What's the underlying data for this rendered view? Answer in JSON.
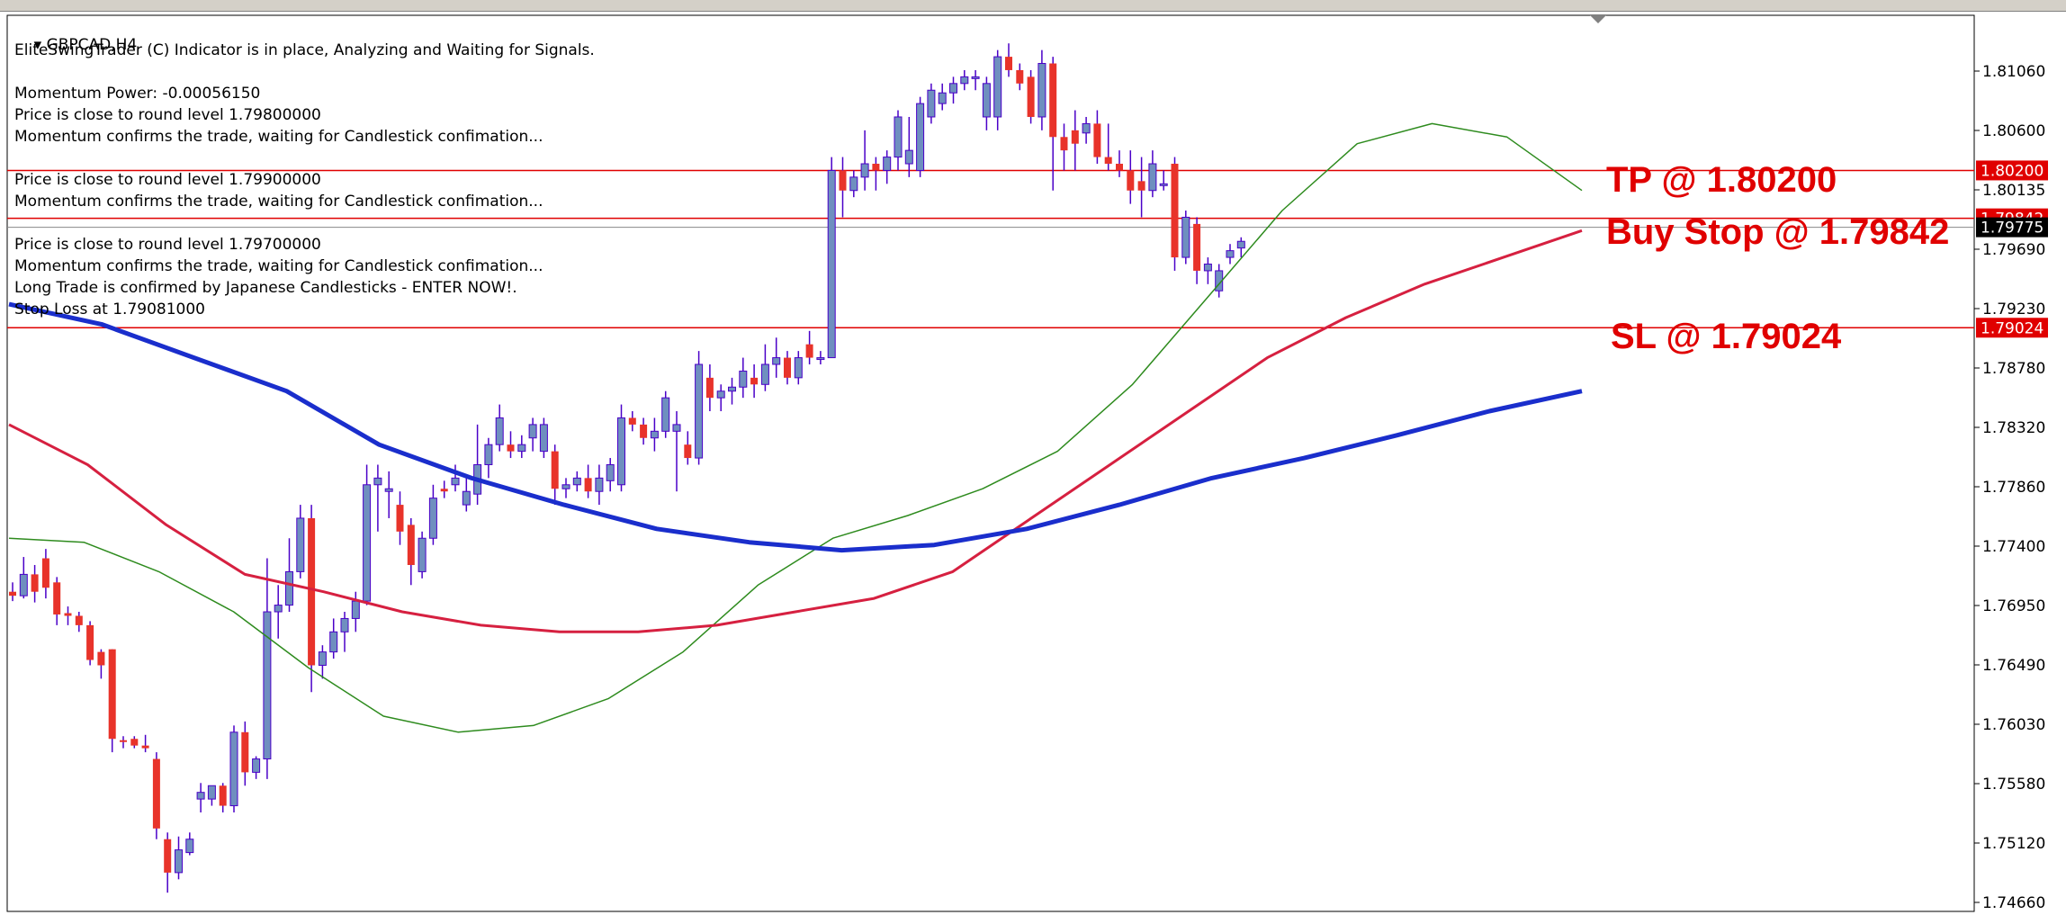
{
  "header": {
    "symbol_title": "GBPCAD,H4"
  },
  "info_lines": [
    "EliteSwingTrader (C) Indicator is in place, Analyzing and Waiting for Signals.",
    "",
    "Momentum Power: -0.00056150",
    "Price is close to round level 1.79800000",
    "Momentum confirms the trade, waiting for Candlestick confimation...",
    "",
    "Price is close to round level 1.79900000",
    "Momentum confirms the trade, waiting for Candlestick confimation...",
    "",
    "Price is close to round level 1.79700000",
    "Momentum confirms the trade, waiting for Candlestick confimation...",
    "Long Trade is confirmed by Japanese Candlesticks - ENTER NOW!.",
    "Stop Loss at 1.79081000"
  ],
  "annotations": {
    "tp": "TP @ 1.80200",
    "buy_stop": "Buy Stop @ 1.79842",
    "sl": "SL @ 1.79024"
  },
  "colors": {
    "bull": "#6f8fbf",
    "bear": "#e8332a",
    "wick": "#4a00c8",
    "level": "#e00000",
    "ma_fast": "#2e8b1e",
    "ma_mid": "#d62040",
    "ma_slow": "#1a2ecc",
    "annotation": "#e00000"
  },
  "chart_data": {
    "type": "candlestick",
    "title": "GBPCAD,H4",
    "ylim": [
      1.7466,
      1.8136
    ],
    "y_ticks": [
      "1.81060",
      "1.80600",
      "1.80135",
      "1.79690",
      "1.79230",
      "1.78780",
      "1.78320",
      "1.77860",
      "1.77400",
      "1.76950",
      "1.76490",
      "1.76030",
      "1.75580",
      "1.75120",
      "1.74660"
    ],
    "levels": [
      {
        "name": "TP",
        "value": 1.802,
        "label": "1.80200"
      },
      {
        "name": "Buy Stop",
        "value": 1.79842,
        "label": "1.79842"
      },
      {
        "name": "SL",
        "value": 1.79024,
        "label": "1.79024"
      }
    ],
    "current_price": {
      "value": 1.79775,
      "label": "1.79775"
    },
    "candles": [
      [
        1.7705,
        1.7712,
        1.7698,
        1.7702
      ],
      [
        1.7702,
        1.7731,
        1.77,
        1.7718
      ],
      [
        1.7718,
        1.7725,
        1.7697,
        1.7705
      ],
      [
        1.773,
        1.7737,
        1.77,
        1.7708
      ],
      [
        1.7712,
        1.7716,
        1.768,
        1.7688
      ],
      [
        1.7689,
        1.7694,
        1.768,
        1.7687
      ],
      [
        1.7687,
        1.769,
        1.7675,
        1.768
      ],
      [
        1.768,
        1.7683,
        1.765,
        1.7654
      ],
      [
        1.766,
        1.7662,
        1.764,
        1.765
      ],
      [
        1.7662,
        1.7662,
        1.7585,
        1.7595
      ],
      [
        1.7594,
        1.7597,
        1.7588,
        1.7593
      ],
      [
        1.7595,
        1.7597,
        1.7588,
        1.759
      ],
      [
        1.759,
        1.7598,
        1.7585,
        1.7588
      ],
      [
        1.758,
        1.7585,
        1.752,
        1.7528
      ],
      [
        1.752,
        1.7525,
        1.748,
        1.7495
      ],
      [
        1.7495,
        1.7522,
        1.749,
        1.7512
      ],
      [
        1.751,
        1.7525,
        1.7508,
        1.752
      ],
      [
        1.755,
        1.7562,
        1.754,
        1.7555
      ],
      [
        1.755,
        1.7558,
        1.7545,
        1.756
      ],
      [
        1.756,
        1.7562,
        1.754,
        1.7545
      ],
      [
        1.7545,
        1.7605,
        1.754,
        1.76
      ],
      [
        1.76,
        1.7608,
        1.756,
        1.757
      ],
      [
        1.757,
        1.7582,
        1.7565,
        1.758
      ],
      [
        1.758,
        1.773,
        1.7565,
        1.769
      ],
      [
        1.769,
        1.771,
        1.767,
        1.7695
      ],
      [
        1.7695,
        1.7745,
        1.769,
        1.772
      ],
      [
        1.772,
        1.777,
        1.7715,
        1.776
      ],
      [
        1.776,
        1.777,
        1.763,
        1.765
      ],
      [
        1.765,
        1.7665,
        1.764,
        1.766
      ],
      [
        1.766,
        1.7685,
        1.7655,
        1.7675
      ],
      [
        1.7675,
        1.769,
        1.766,
        1.7685
      ],
      [
        1.7685,
        1.7705,
        1.7675,
        1.7698
      ],
      [
        1.7698,
        1.78,
        1.7695,
        1.7785
      ],
      [
        1.7785,
        1.78,
        1.775,
        1.779
      ],
      [
        1.778,
        1.7795,
        1.776,
        1.7782
      ],
      [
        1.777,
        1.778,
        1.774,
        1.775
      ],
      [
        1.7755,
        1.776,
        1.771,
        1.7725
      ],
      [
        1.772,
        1.775,
        1.7715,
        1.7745
      ],
      [
        1.7745,
        1.7785,
        1.774,
        1.7775
      ],
      [
        1.7782,
        1.7788,
        1.7775,
        1.778
      ],
      [
        1.7785,
        1.78,
        1.778,
        1.779
      ],
      [
        1.777,
        1.779,
        1.7765,
        1.778
      ],
      [
        1.7778,
        1.783,
        1.777,
        1.78
      ],
      [
        1.78,
        1.782,
        1.779,
        1.7815
      ],
      [
        1.7815,
        1.7845,
        1.781,
        1.7835
      ],
      [
        1.7815,
        1.7825,
        1.7805,
        1.781
      ],
      [
        1.781,
        1.7822,
        1.7805,
        1.7815
      ],
      [
        1.782,
        1.7835,
        1.781,
        1.783
      ],
      [
        1.781,
        1.7835,
        1.7805,
        1.783
      ],
      [
        1.781,
        1.7815,
        1.777,
        1.7782
      ],
      [
        1.7782,
        1.779,
        1.7775,
        1.7785
      ],
      [
        1.7785,
        1.7795,
        1.778,
        1.779
      ],
      [
        1.779,
        1.78,
        1.7775,
        1.778
      ],
      [
        1.778,
        1.78,
        1.777,
        1.779
      ],
      [
        1.7788,
        1.7805,
        1.778,
        1.78
      ],
      [
        1.7785,
        1.7845,
        1.778,
        1.7835
      ],
      [
        1.7835,
        1.784,
        1.7825,
        1.783
      ],
      [
        1.783,
        1.7835,
        1.7815,
        1.782
      ],
      [
        1.782,
        1.7835,
        1.781,
        1.7825
      ],
      [
        1.7825,
        1.7855,
        1.782,
        1.785
      ],
      [
        1.7825,
        1.784,
        1.778,
        1.783
      ],
      [
        1.7815,
        1.7825,
        1.78,
        1.7805
      ],
      [
        1.7805,
        1.7885,
        1.78,
        1.7875
      ],
      [
        1.7865,
        1.7875,
        1.784,
        1.785
      ],
      [
        1.785,
        1.786,
        1.784,
        1.7855
      ],
      [
        1.7855,
        1.7865,
        1.7845,
        1.7858
      ],
      [
        1.7858,
        1.788,
        1.785,
        1.787
      ],
      [
        1.7865,
        1.7875,
        1.785,
        1.786
      ],
      [
        1.786,
        1.789,
        1.7855,
        1.7875
      ],
      [
        1.7875,
        1.7895,
        1.7865,
        1.788
      ],
      [
        1.788,
        1.7885,
        1.786,
        1.7865
      ],
      [
        1.7865,
        1.7885,
        1.786,
        1.788
      ],
      [
        1.789,
        1.79,
        1.7875,
        1.788
      ],
      [
        1.788,
        1.7885,
        1.7875,
        1.788
      ],
      [
        1.788,
        1.803,
        1.788,
        1.802
      ],
      [
        1.802,
        1.803,
        1.7985,
        1.8005
      ],
      [
        1.8005,
        1.802,
        1.8,
        1.8015
      ],
      [
        1.8015,
        1.805,
        1.8005,
        1.8025
      ],
      [
        1.8025,
        1.803,
        1.8005,
        1.802
      ],
      [
        1.802,
        1.8035,
        1.801,
        1.803
      ],
      [
        1.803,
        1.8065,
        1.802,
        1.806
      ],
      [
        1.8025,
        1.806,
        1.8015,
        1.8035
      ],
      [
        1.802,
        1.8075,
        1.8015,
        1.807
      ],
      [
        1.806,
        1.8085,
        1.8055,
        1.808
      ],
      [
        1.807,
        1.8085,
        1.8065,
        1.8078
      ],
      [
        1.8078,
        1.809,
        1.807,
        1.8085
      ],
      [
        1.8085,
        1.8095,
        1.808,
        1.809
      ],
      [
        1.809,
        1.8095,
        1.808,
        1.809
      ],
      [
        1.806,
        1.809,
        1.805,
        1.8085
      ],
      [
        1.806,
        1.811,
        1.805,
        1.8105
      ],
      [
        1.8105,
        1.8115,
        1.809,
        1.8095
      ],
      [
        1.8095,
        1.81,
        1.808,
        1.8085
      ],
      [
        1.809,
        1.8095,
        1.8055,
        1.806
      ],
      [
        1.806,
        1.811,
        1.805,
        1.81
      ],
      [
        1.81,
        1.8105,
        1.8005,
        1.8045
      ],
      [
        1.8045,
        1.8055,
        1.802,
        1.8035
      ],
      [
        1.805,
        1.8065,
        1.802,
        1.804
      ],
      [
        1.8048,
        1.806,
        1.804,
        1.8055
      ],
      [
        1.8055,
        1.8065,
        1.8025,
        1.803
      ],
      [
        1.803,
        1.8055,
        1.802,
        1.8025
      ],
      [
        1.8025,
        1.8035,
        1.8015,
        1.802
      ],
      [
        1.802,
        1.8035,
        1.7995,
        1.8005
      ],
      [
        1.8012,
        1.803,
        1.7985,
        1.8005
      ],
      [
        1.8005,
        1.8035,
        1.8,
        1.8025
      ],
      [
        1.801,
        1.802,
        1.8005,
        1.801
      ],
      [
        1.8025,
        1.803,
        1.7945,
        1.7955
      ],
      [
        1.7955,
        1.799,
        1.795,
        1.7985
      ],
      [
        1.798,
        1.7985,
        1.7935,
        1.7945
      ],
      [
        1.7945,
        1.7955,
        1.7935,
        1.795
      ],
      [
        1.793,
        1.795,
        1.7925,
        1.7945
      ],
      [
        1.7955,
        1.7965,
        1.795,
        1.796
      ],
      [
        1.7962,
        1.797,
        1.7955,
        1.7967
      ]
    ],
    "series": [
      {
        "points": [
          1.7745,
          1.7742,
          1.772,
          1.769,
          1.7648,
          1.7612,
          1.76,
          1.7605,
          1.7625,
          1.766,
          1.771,
          1.7745,
          1.7762,
          1.7782,
          1.781,
          1.786,
          1.7925,
          1.799,
          1.804,
          1.8055,
          1.8045,
          1.8005
        ]
      },
      {
        "points": [
          1.783,
          1.78,
          1.7755,
          1.7718,
          1.7705,
          1.769,
          1.768,
          1.7675,
          1.7675,
          1.768,
          1.769,
          1.77,
          1.772,
          1.776,
          1.78,
          1.784,
          1.788,
          1.791,
          1.7935,
          1.7955,
          1.7975
        ]
      },
      {
        "points": [
          1.792,
          1.7905,
          1.788,
          1.7855,
          1.7815,
          1.779,
          1.777,
          1.7752,
          1.7742,
          1.7736,
          1.774,
          1.7752,
          1.777,
          1.779,
          1.7805,
          1.7822,
          1.784,
          1.7855
        ]
      }
    ]
  }
}
